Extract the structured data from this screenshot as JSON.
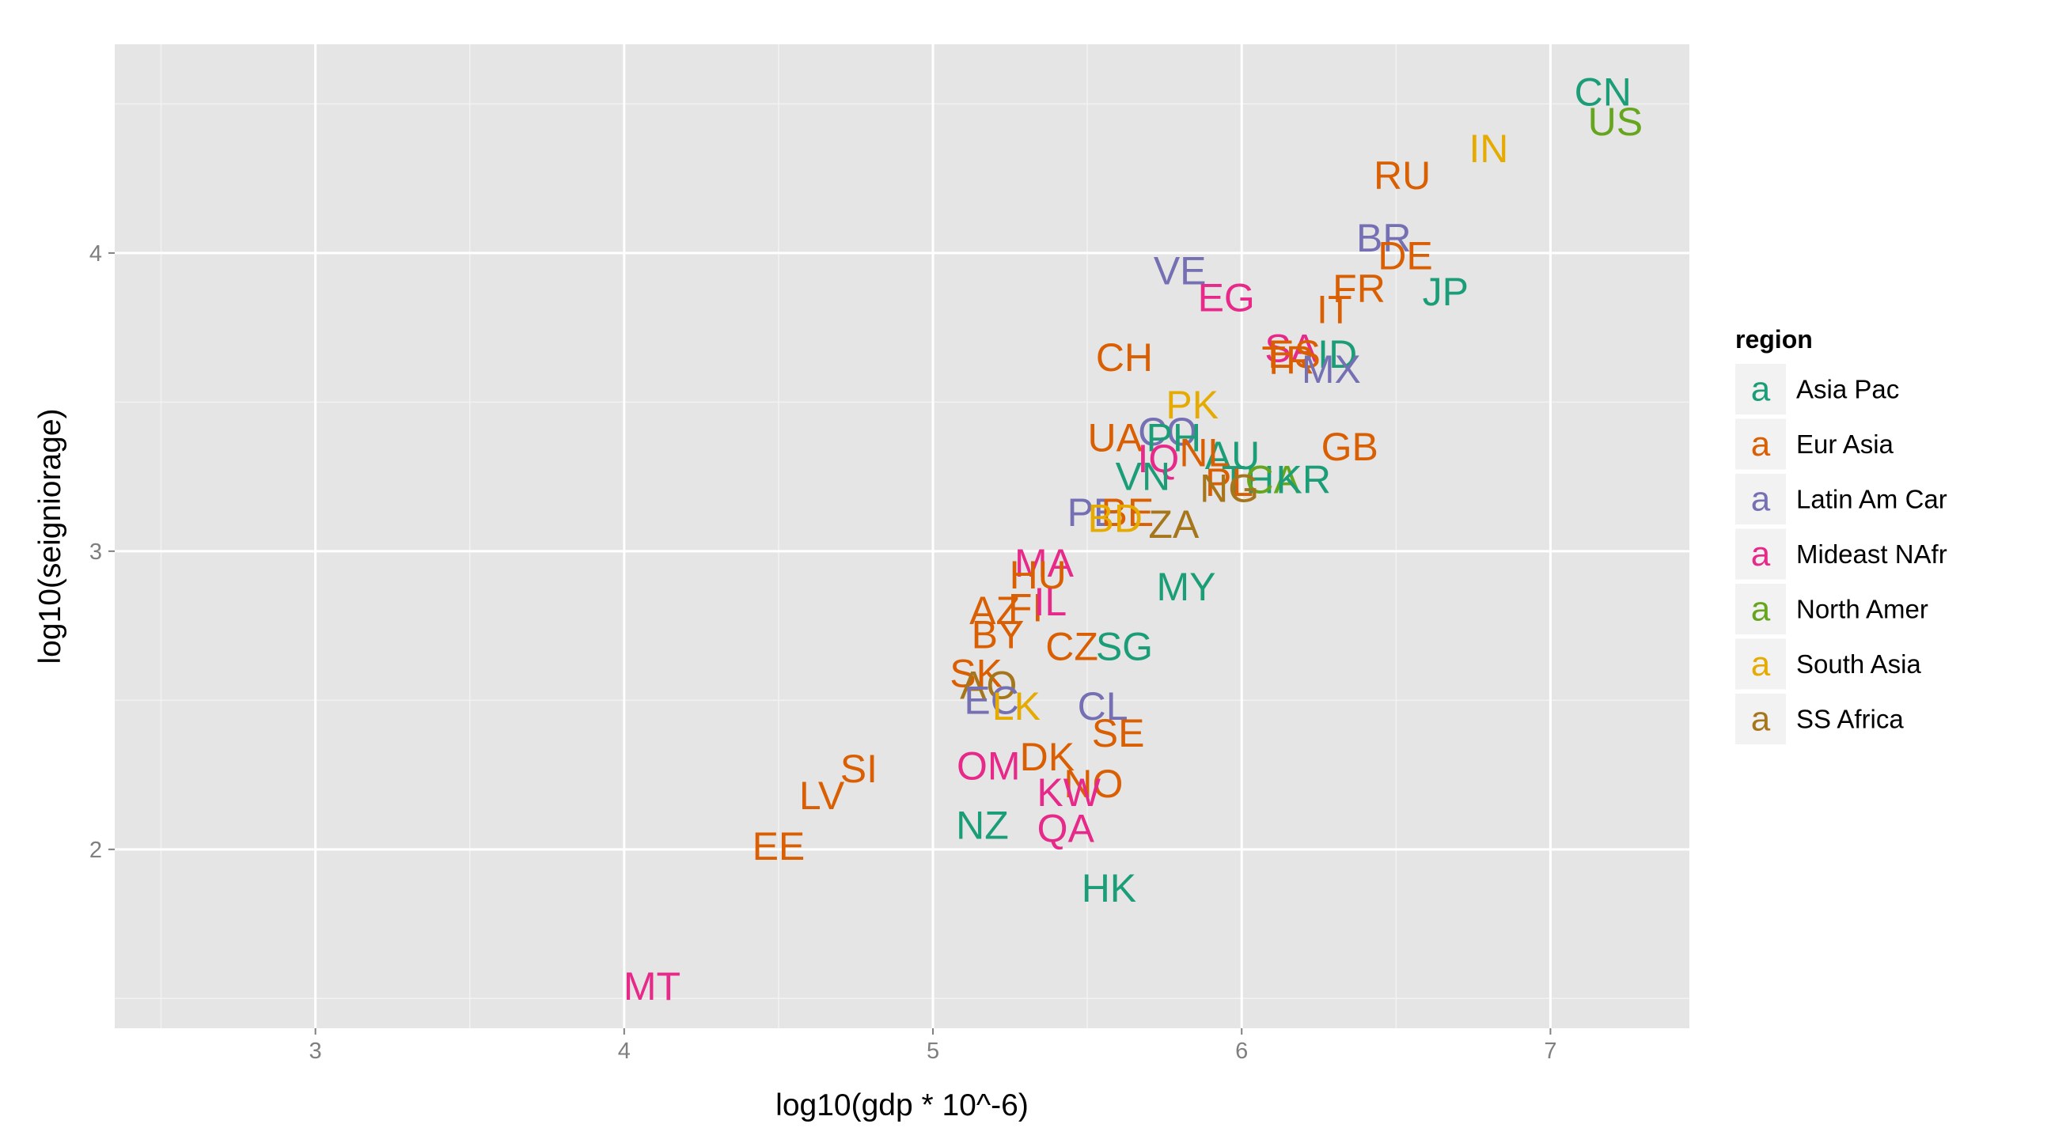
{
  "chart_data": {
    "type": "scatter",
    "title": "",
    "xlabel": "log10(gdp * 10^-6)",
    "ylabel": "log10(seigniorage)",
    "xlim": [
      2.35,
      7.45
    ],
    "ylim": [
      1.4,
      4.7
    ],
    "x_ticks": [
      "3",
      "4",
      "5",
      "6",
      "7"
    ],
    "y_ticks": [
      "2",
      "3",
      "4"
    ],
    "grid": true,
    "legend": {
      "title": "region",
      "placement": "right",
      "key_glyph": "a",
      "entries": [
        "Asia Pac",
        "Eur Asia",
        "Latin Am Car",
        "Mideast NAfr",
        "North Amer",
        "South Asia",
        "SS Africa"
      ]
    },
    "colors": {
      "Asia Pac": "#1b9e77",
      "Eur Asia": "#d95f02",
      "Latin Am Car": "#7570b3",
      "Mideast NAfr": "#e7298a",
      "North Amer": "#66a61e",
      "South Asia": "#e6ab02",
      "SS Africa": "#a6761d"
    },
    "points": [
      {
        "label": "CN",
        "x": 7.17,
        "y": 4.54,
        "region": "Asia Pac"
      },
      {
        "label": "US",
        "x": 7.21,
        "y": 4.44,
        "region": "North Amer"
      },
      {
        "label": "IN",
        "x": 6.8,
        "y": 4.35,
        "region": "South Asia"
      },
      {
        "label": "RU",
        "x": 6.52,
        "y": 4.26,
        "region": "Eur Asia"
      },
      {
        "label": "BR",
        "x": 6.46,
        "y": 4.05,
        "region": "Latin Am Car"
      },
      {
        "label": "DE",
        "x": 6.53,
        "y": 3.99,
        "region": "Eur Asia"
      },
      {
        "label": "JP",
        "x": 6.66,
        "y": 3.87,
        "region": "Asia Pac"
      },
      {
        "label": "FR",
        "x": 6.38,
        "y": 3.88,
        "region": "Eur Asia"
      },
      {
        "label": "IT",
        "x": 6.3,
        "y": 3.81,
        "region": "Eur Asia"
      },
      {
        "label": "VE",
        "x": 5.8,
        "y": 3.94,
        "region": "Latin Am Car"
      },
      {
        "label": "EG",
        "x": 5.95,
        "y": 3.85,
        "region": "Mideast NAfr"
      },
      {
        "label": "SA",
        "x": 6.16,
        "y": 3.68,
        "region": "Mideast NAfr"
      },
      {
        "label": "ES",
        "x": 6.17,
        "y": 3.66,
        "region": "Eur Asia"
      },
      {
        "label": "TR",
        "x": 6.15,
        "y": 3.64,
        "region": "Eur Asia"
      },
      {
        "label": "ID",
        "x": 6.31,
        "y": 3.66,
        "region": "Asia Pac"
      },
      {
        "label": "MX",
        "x": 6.29,
        "y": 3.61,
        "region": "Latin Am Car"
      },
      {
        "label": "CH",
        "x": 5.62,
        "y": 3.65,
        "region": "Eur Asia"
      },
      {
        "label": "PK",
        "x": 5.84,
        "y": 3.49,
        "region": "South Asia"
      },
      {
        "label": "UA",
        "x": 5.59,
        "y": 3.38,
        "region": "Eur Asia"
      },
      {
        "label": "CO",
        "x": 5.76,
        "y": 3.4,
        "region": "Latin Am Car"
      },
      {
        "label": "PH",
        "x": 5.78,
        "y": 3.38,
        "region": "Asia Pac"
      },
      {
        "label": "AU",
        "x": 5.97,
        "y": 3.32,
        "region": "Asia Pac"
      },
      {
        "label": "IQ",
        "x": 5.73,
        "y": 3.31,
        "region": "Mideast NAfr"
      },
      {
        "label": "NL",
        "x": 5.88,
        "y": 3.33,
        "region": "Eur Asia"
      },
      {
        "label": "GB",
        "x": 6.35,
        "y": 3.35,
        "region": "Eur Asia"
      },
      {
        "label": "VN",
        "x": 5.68,
        "y": 3.25,
        "region": "Asia Pac"
      },
      {
        "label": "TH",
        "x": 6.02,
        "y": 3.24,
        "region": "Asia Pac"
      },
      {
        "label": "CA",
        "x": 6.1,
        "y": 3.24,
        "region": "North Amer"
      },
      {
        "label": "KR",
        "x": 6.2,
        "y": 3.24,
        "region": "Asia Pac"
      },
      {
        "label": "PL",
        "x": 5.96,
        "y": 3.23,
        "region": "Eur Asia"
      },
      {
        "label": "NG",
        "x": 5.96,
        "y": 3.21,
        "region": "SS Africa"
      },
      {
        "label": "PE",
        "x": 5.52,
        "y": 3.13,
        "region": "Latin Am Car"
      },
      {
        "label": "BE",
        "x": 5.63,
        "y": 3.13,
        "region": "Eur Asia"
      },
      {
        "label": "BD",
        "x": 5.59,
        "y": 3.11,
        "region": "South Asia"
      },
      {
        "label": "ZA",
        "x": 5.78,
        "y": 3.09,
        "region": "SS Africa"
      },
      {
        "label": "MA",
        "x": 5.36,
        "y": 2.96,
        "region": "Mideast NAfr"
      },
      {
        "label": "HU",
        "x": 5.34,
        "y": 2.92,
        "region": "Eur Asia"
      },
      {
        "label": "MY",
        "x": 5.82,
        "y": 2.88,
        "region": "Asia Pac"
      },
      {
        "label": "AZ",
        "x": 5.2,
        "y": 2.8,
        "region": "Eur Asia"
      },
      {
        "label": "FI",
        "x": 5.3,
        "y": 2.81,
        "region": "Eur Asia"
      },
      {
        "label": "IL",
        "x": 5.38,
        "y": 2.83,
        "region": "Mideast NAfr"
      },
      {
        "label": "BY",
        "x": 5.21,
        "y": 2.72,
        "region": "Eur Asia"
      },
      {
        "label": "CZ",
        "x": 5.45,
        "y": 2.68,
        "region": "Eur Asia"
      },
      {
        "label": "SG",
        "x": 5.62,
        "y": 2.68,
        "region": "Asia Pac"
      },
      {
        "label": "SK",
        "x": 5.14,
        "y": 2.59,
        "region": "Eur Asia"
      },
      {
        "label": "AO",
        "x": 5.18,
        "y": 2.55,
        "region": "SS Africa"
      },
      {
        "label": "EC",
        "x": 5.19,
        "y": 2.5,
        "region": "Latin Am Car"
      },
      {
        "label": "LK",
        "x": 5.27,
        "y": 2.48,
        "region": "South Asia"
      },
      {
        "label": "CL",
        "x": 5.55,
        "y": 2.48,
        "region": "Latin Am Car"
      },
      {
        "label": "SE",
        "x": 5.6,
        "y": 2.39,
        "region": "Eur Asia"
      },
      {
        "label": "OM",
        "x": 5.18,
        "y": 2.28,
        "region": "Mideast NAfr"
      },
      {
        "label": "DK",
        "x": 5.37,
        "y": 2.31,
        "region": "Eur Asia"
      },
      {
        "label": "NO",
        "x": 5.52,
        "y": 2.22,
        "region": "Eur Asia"
      },
      {
        "label": "KW",
        "x": 5.44,
        "y": 2.19,
        "region": "Mideast NAfr"
      },
      {
        "label": "SI",
        "x": 4.76,
        "y": 2.27,
        "region": "Eur Asia"
      },
      {
        "label": "LV",
        "x": 4.64,
        "y": 2.18,
        "region": "Eur Asia"
      },
      {
        "label": "NZ",
        "x": 5.16,
        "y": 2.08,
        "region": "Asia Pac"
      },
      {
        "label": "QA",
        "x": 5.43,
        "y": 2.07,
        "region": "Mideast NAfr"
      },
      {
        "label": "EE",
        "x": 4.5,
        "y": 2.01,
        "region": "Eur Asia"
      },
      {
        "label": "HK",
        "x": 5.57,
        "y": 1.87,
        "region": "Asia Pac"
      },
      {
        "label": "MT",
        "x": 4.09,
        "y": 1.54,
        "region": "Mideast NAfr"
      }
    ]
  }
}
